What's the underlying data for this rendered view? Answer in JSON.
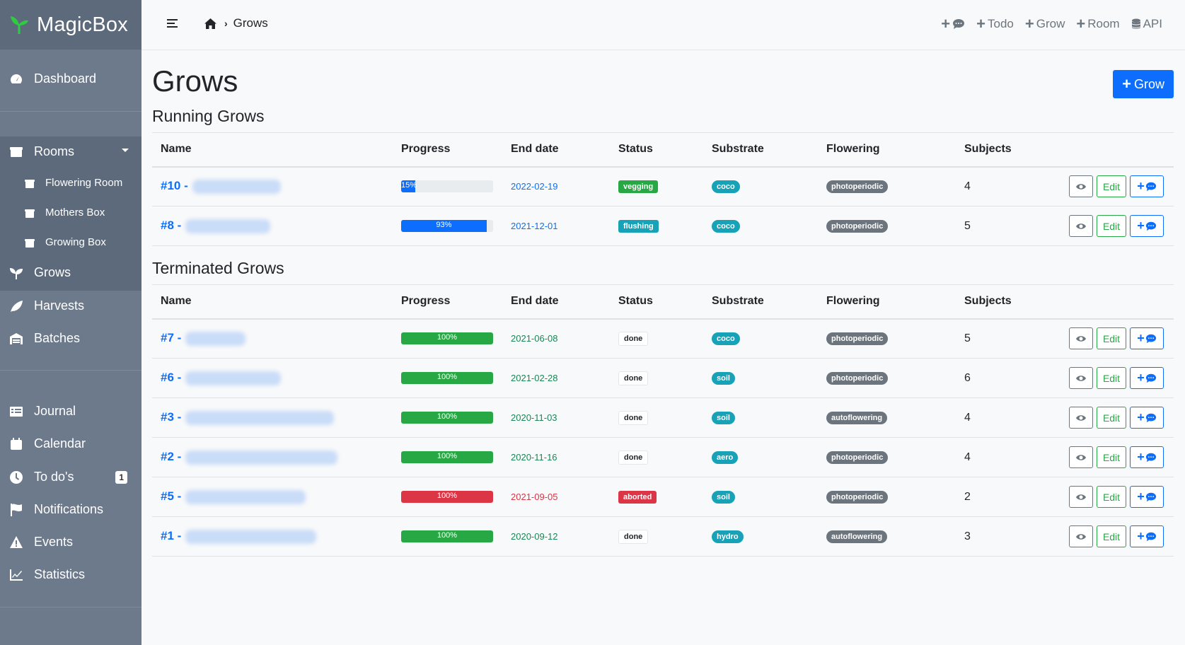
{
  "app": {
    "name": "MagicBox"
  },
  "sidebar": {
    "dashboard": "Dashboard",
    "rooms": "Rooms",
    "room_items": [
      "Flowering Room",
      "Mothers Box",
      "Growing Box"
    ],
    "grows": "Grows",
    "harvests": "Harvests",
    "batches": "Batches",
    "journal": "Journal",
    "calendar": "Calendar",
    "todos": "To do's",
    "todos_count": "1",
    "notifications": "Notifications",
    "events": "Events",
    "statistics": "Statistics"
  },
  "topbar": {
    "breadcrumb": "Grows",
    "actions": [
      "Todo",
      "Grow",
      "Room",
      "API"
    ]
  },
  "page": {
    "title": "Grows",
    "add_button": "Grow",
    "running_title": "Running Grows",
    "terminated_title": "Terminated Grows"
  },
  "columns": [
    "Name",
    "Progress",
    "End date",
    "Status",
    "Substrate",
    "Flowering",
    "Subjects"
  ],
  "edit_label": "Edit",
  "running": [
    {
      "id": "#10 -",
      "progress": 15,
      "progress_label": "15%",
      "progress_color": "blue",
      "end_date": "2022-02-19",
      "date_color": "blue",
      "status": "vegging",
      "status_color": "green",
      "substrate": "coco",
      "flowering": "photoperiodic",
      "subjects": "4"
    },
    {
      "id": "#8 -",
      "progress": 93,
      "progress_label": "93%",
      "progress_color": "blue",
      "end_date": "2021-12-01",
      "date_color": "blue",
      "status": "flushing",
      "status_color": "teal",
      "substrate": "coco",
      "flowering": "photoperiodic",
      "subjects": "5"
    }
  ],
  "terminated": [
    {
      "id": "#7 -",
      "progress": 100,
      "progress_label": "100%",
      "progress_color": "green",
      "end_date": "2021-06-08",
      "date_color": "green",
      "status": "done",
      "status_color": "light",
      "substrate": "coco",
      "flowering": "photoperiodic",
      "subjects": "5"
    },
    {
      "id": "#6 -",
      "progress": 100,
      "progress_label": "100%",
      "progress_color": "green",
      "end_date": "2021-02-28",
      "date_color": "green",
      "status": "done",
      "status_color": "light",
      "substrate": "soil",
      "flowering": "photoperiodic",
      "subjects": "6"
    },
    {
      "id": "#3 -",
      "progress": 100,
      "progress_label": "100%",
      "progress_color": "green",
      "end_date": "2020-11-03",
      "date_color": "green",
      "status": "done",
      "status_color": "light",
      "substrate": "soil",
      "flowering": "autoflowering",
      "subjects": "4"
    },
    {
      "id": "#2 -",
      "progress": 100,
      "progress_label": "100%",
      "progress_color": "green",
      "end_date": "2020-11-16",
      "date_color": "green",
      "status": "done",
      "status_color": "light",
      "substrate": "aero",
      "flowering": "photoperiodic",
      "subjects": "4"
    },
    {
      "id": "#5 -",
      "progress": 100,
      "progress_label": "100%",
      "progress_color": "red",
      "end_date": "2021-09-05",
      "date_color": "red",
      "status": "aborted",
      "status_color": "red",
      "substrate": "soil",
      "flowering": "photoperiodic",
      "subjects": "2"
    },
    {
      "id": "#1 -",
      "progress": 100,
      "progress_label": "100%",
      "progress_color": "green",
      "end_date": "2020-09-12",
      "date_color": "green",
      "status": "done",
      "status_color": "light",
      "substrate": "hydro",
      "flowering": "autoflowering",
      "subjects": "3"
    }
  ],
  "colors": {
    "primary": "#0d6efd",
    "success": "#28a745",
    "danger": "#dc3545",
    "info": "#17a2b8",
    "secondary": "#6c757d",
    "sidebar": "#6c7a8c"
  },
  "icons": {
    "brand": "sprout-icon",
    "dashboard": "tachometer-icon",
    "rooms": "box-icon",
    "grows": "seedling-icon",
    "harvests": "leaf-icon",
    "batches": "warehouse-icon",
    "journal": "list-icon",
    "calendar": "calendar-icon",
    "todos": "clock-icon",
    "notifications": "flag-icon",
    "events": "warning-icon",
    "statistics": "chart-line-icon"
  }
}
